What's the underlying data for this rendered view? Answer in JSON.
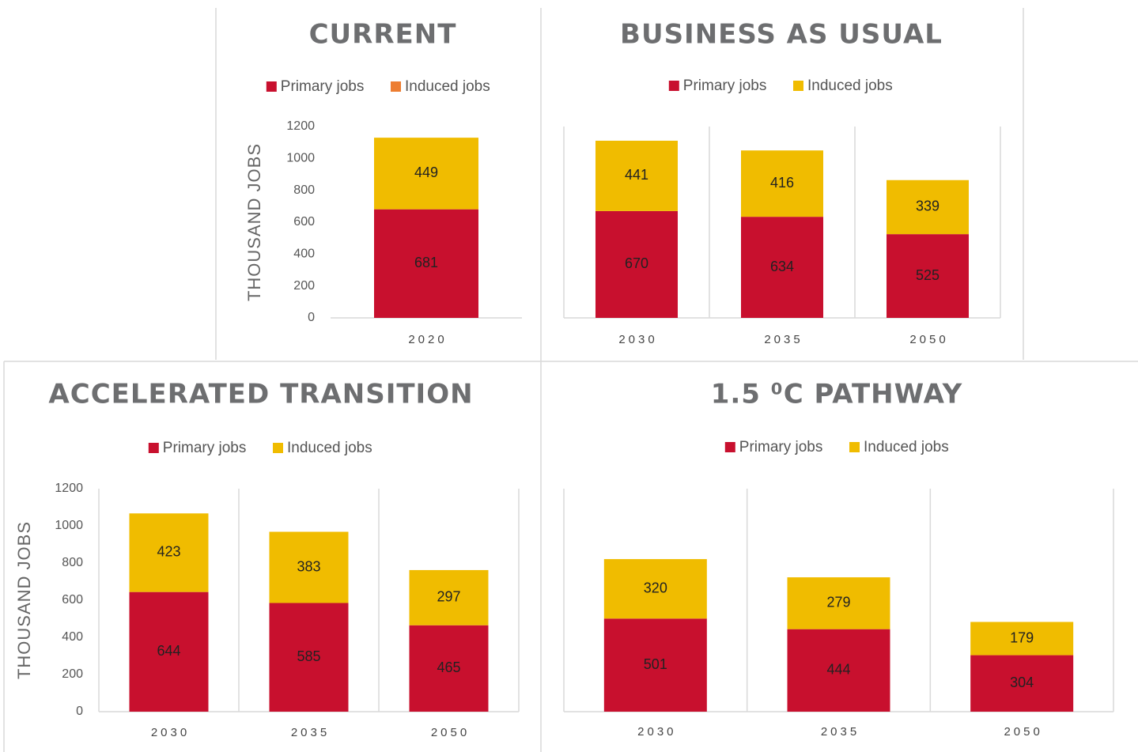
{
  "chart_data": [
    {
      "type": "bar",
      "stacked": true,
      "title": "CURRENT",
      "y_label": "THOUSAND JOBS",
      "categories": [
        "2020"
      ],
      "series": [
        {
          "name": "Primary jobs",
          "color": "#c8102e",
          "values": [
            681
          ]
        },
        {
          "name": "Induced jobs",
          "color": "#f0bc00",
          "legend_color": "#ed7d31",
          "values": [
            449
          ]
        }
      ],
      "ylim": [
        0,
        1200
      ],
      "yticks": [
        0,
        200,
        400,
        600,
        800,
        1000,
        1200
      ],
      "vgrid": false
    },
    {
      "type": "bar",
      "stacked": true,
      "title": "BUSINESS AS USUAL",
      "categories": [
        "2030",
        "2035",
        "2050"
      ],
      "series": [
        {
          "name": "Primary jobs",
          "color": "#c8102e",
          "values": [
            670,
            634,
            525
          ]
        },
        {
          "name": "Induced jobs",
          "color": "#f0bc00",
          "values": [
            441,
            416,
            339
          ]
        }
      ],
      "ylim": [
        0,
        1200
      ],
      "vgrid": true
    },
    {
      "type": "bar",
      "stacked": true,
      "title": "ACCELERATED TRANSITION",
      "y_label": "THOUSAND JOBS",
      "categories": [
        "2030",
        "2035",
        "2050"
      ],
      "series": [
        {
          "name": "Primary jobs",
          "color": "#c8102e",
          "values": [
            644,
            585,
            465
          ]
        },
        {
          "name": "Induced jobs",
          "color": "#f0bc00",
          "values": [
            423,
            383,
            297
          ]
        }
      ],
      "ylim": [
        0,
        1200
      ],
      "yticks": [
        0,
        200,
        400,
        600,
        800,
        1000,
        1200
      ],
      "vgrid": true
    },
    {
      "type": "bar",
      "stacked": true,
      "title": "1.5 ⁰C PATHWAY",
      "categories": [
        "2030",
        "2035",
        "2050"
      ],
      "series": [
        {
          "name": "Primary jobs",
          "color": "#c8102e",
          "values": [
            501,
            444,
            304
          ]
        },
        {
          "name": "Induced jobs",
          "color": "#f0bc00",
          "values": [
            320,
            279,
            179
          ]
        }
      ],
      "ylim": [
        0,
        1200
      ],
      "vgrid": true
    }
  ]
}
